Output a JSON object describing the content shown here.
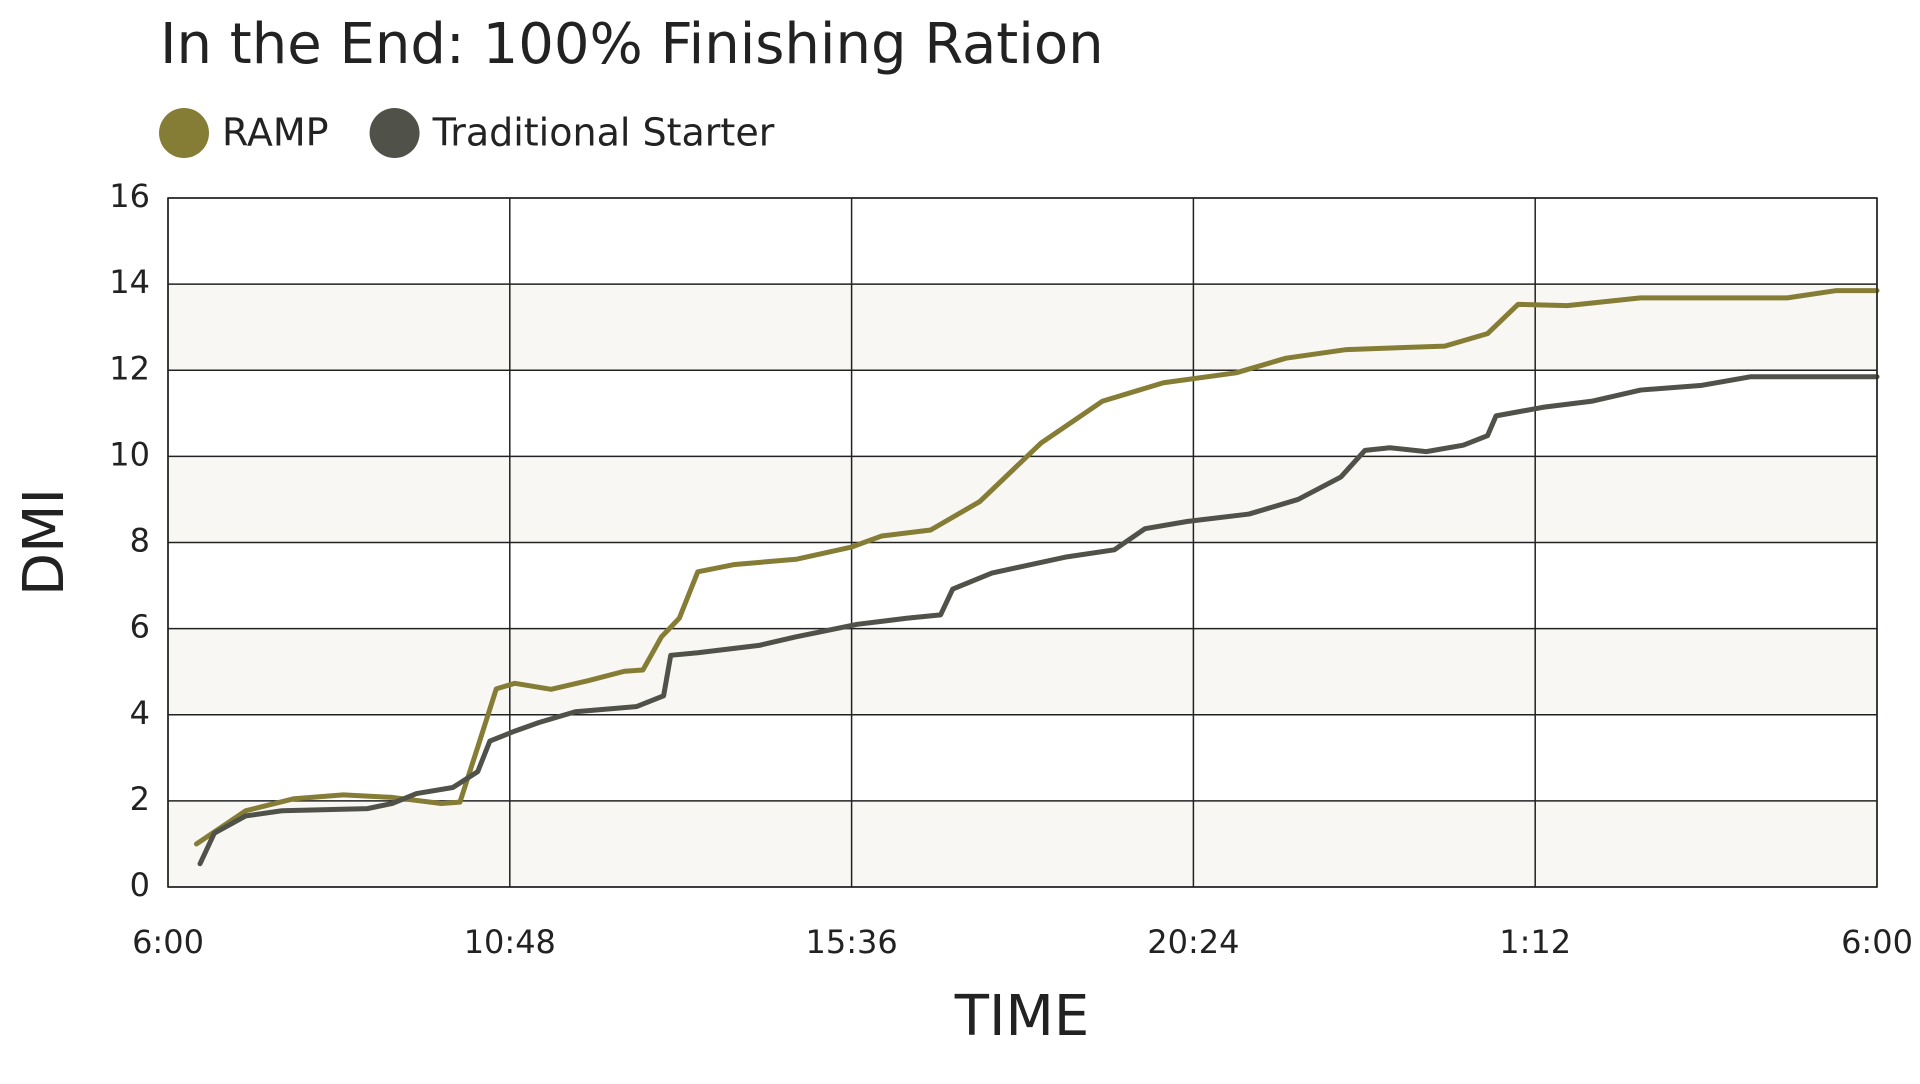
{
  "chart_data": {
    "type": "line",
    "title": "In the End: 100% Finishing Ration",
    "xlabel": "TIME",
    "ylabel": "DMI",
    "xlim": [
      6,
      30
    ],
    "xticks": [
      {
        "value": 6,
        "label": "6:00"
      },
      {
        "value": 10.8,
        "label": "10:48"
      },
      {
        "value": 15.6,
        "label": "15:36"
      },
      {
        "value": 20.4,
        "label": "20:24"
      },
      {
        "value": 25.2,
        "label": "1:12"
      },
      {
        "value": 30,
        "label": "6:00"
      }
    ],
    "ylim": [
      0,
      16
    ],
    "yticks": [
      0,
      2,
      4,
      6,
      8,
      10,
      12,
      14,
      16
    ],
    "grid": true,
    "legend": "top-left",
    "series": [
      {
        "name": "RAMP",
        "color": "#857d35",
        "x": [
          6.4,
          7.09,
          7.77,
          8.46,
          9.15,
          9.84,
          10.1,
          10.35,
          10.61,
          10.87,
          11.38,
          11.9,
          12.41,
          12.67,
          12.93,
          13.18,
          13.44,
          13.96,
          14.82,
          15.59,
          16.02,
          16.71,
          17.4,
          18.26,
          19.12,
          19.98,
          21.0,
          21.7,
          22.55,
          23.93,
          24.53,
          24.96,
          25.65,
          26.68,
          28.74,
          29.43,
          30
        ],
        "values": [
          1.0,
          1.77,
          2.05,
          2.14,
          2.08,
          1.94,
          1.97,
          3.25,
          4.6,
          4.73,
          4.59,
          4.79,
          5.01,
          5.04,
          5.81,
          6.24,
          7.32,
          7.49,
          7.61,
          7.89,
          8.15,
          8.29,
          8.95,
          10.31,
          11.28,
          11.71,
          11.94,
          12.28,
          12.48,
          12.56,
          12.85,
          13.53,
          13.5,
          13.68,
          13.68,
          13.85,
          13.85
        ]
      },
      {
        "name": "Traditional Starter",
        "color": "#50524a",
        "x": [
          6.45,
          6.65,
          7.09,
          7.6,
          8.8,
          9.15,
          9.49,
          10.0,
          10.35,
          10.52,
          10.87,
          11.21,
          11.72,
          12.58,
          12.96,
          13.06,
          13.44,
          14.3,
          14.82,
          15.68,
          16.37,
          16.85,
          17.02,
          17.57,
          18.6,
          19.29,
          19.72,
          20.32,
          21.18,
          21.87,
          22.47,
          22.81,
          23.16,
          23.67,
          24.19,
          24.53,
          24.65,
          25.31,
          25.99,
          26.68,
          27.54,
          28.23,
          30
        ],
        "values": [
          0.54,
          1.25,
          1.65,
          1.77,
          1.82,
          1.94,
          2.17,
          2.31,
          2.68,
          3.39,
          3.62,
          3.82,
          4.07,
          4.19,
          4.44,
          5.38,
          5.44,
          5.61,
          5.81,
          6.1,
          6.24,
          6.32,
          6.92,
          7.29,
          7.66,
          7.83,
          8.32,
          8.49,
          8.66,
          9.0,
          9.52,
          10.14,
          10.2,
          10.11,
          10.26,
          10.48,
          10.94,
          11.14,
          11.28,
          11.54,
          11.65,
          11.85,
          11.85
        ]
      }
    ]
  }
}
